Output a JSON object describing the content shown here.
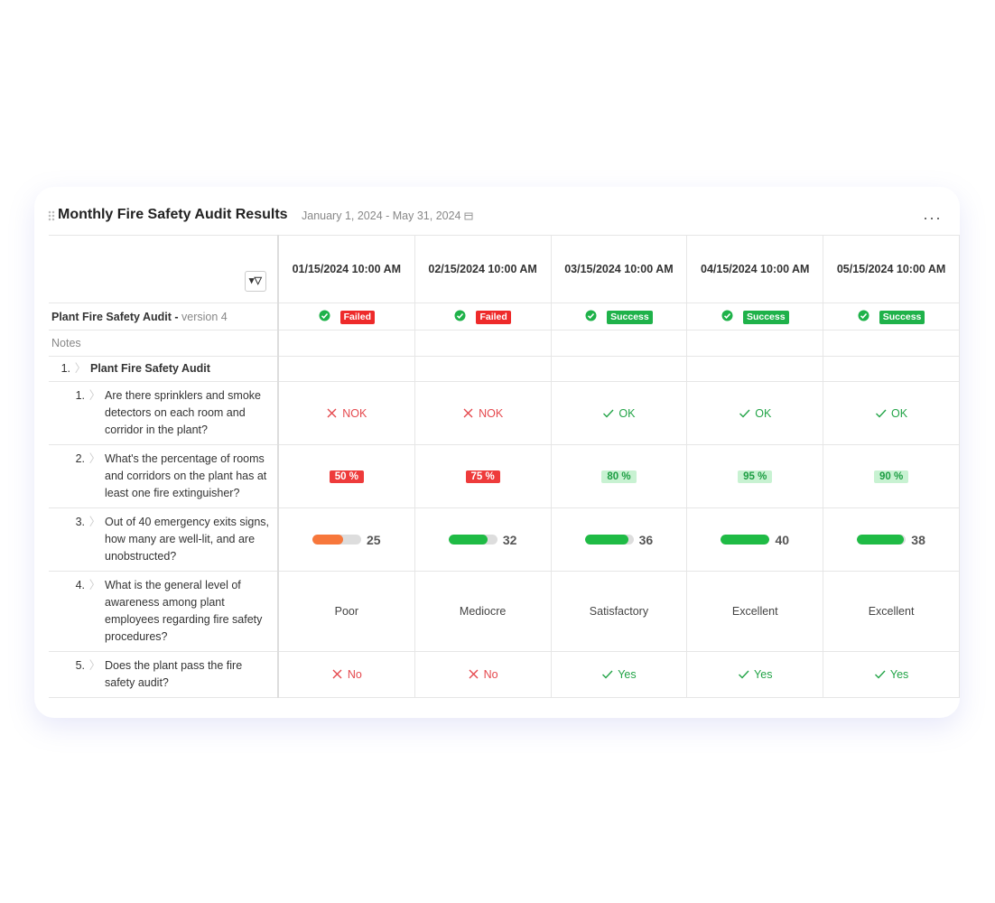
{
  "header": {
    "title": "Monthly Fire Safety Audit Results",
    "date_range": "January 1, 2024 - May 31, 2024"
  },
  "table": {
    "columns": [
      "01/15/2024 10:00 AM",
      "02/15/2024 10:00 AM",
      "03/15/2024 10:00 AM",
      "04/15/2024 10:00 AM",
      "05/15/2024 10:00 AM"
    ],
    "audit": {
      "name": "Plant Fire Safety Audit -",
      "version": "version 4",
      "statuses": [
        {
          "label": "Failed",
          "color": "#ee2a2a"
        },
        {
          "label": "Failed",
          "color": "#ee2a2a"
        },
        {
          "label": "Success",
          "color": "#1fb24a"
        },
        {
          "label": "Success",
          "color": "#1fb24a"
        },
        {
          "label": "Success",
          "color": "#1fb24a"
        }
      ]
    },
    "notes_label": "Notes",
    "section": {
      "number": "1.",
      "title": "Plant Fire Safety Audit"
    },
    "questions": [
      {
        "number": "1.",
        "text": "Are there sprinklers and smoke detectors on each room and corridor in the plant?",
        "answers": [
          {
            "label": "NOK",
            "icon": "cross",
            "color": "#e5484d"
          },
          {
            "label": "NOK",
            "icon": "cross",
            "color": "#e5484d"
          },
          {
            "label": "OK",
            "icon": "check",
            "color": "#22a447"
          },
          {
            "label": "OK",
            "icon": "check",
            "color": "#22a447"
          },
          {
            "label": "OK",
            "icon": "check",
            "color": "#22a447"
          }
        ]
      },
      {
        "number": "2.",
        "text": "What's the percentage of rooms and corridors on the plant has at least one fire extinguisher?",
        "answers": [
          {
            "label": "50 %",
            "bg": "#ee3b3b",
            "color": "#ffffff"
          },
          {
            "label": "75 %",
            "bg": "#ee3b3b",
            "color": "#ffffff"
          },
          {
            "label": "80 %",
            "bg": "#c8f2d2",
            "color": "#1e9e44"
          },
          {
            "label": "95 %",
            "bg": "#c8f2d2",
            "color": "#1e9e44"
          },
          {
            "label": "90 %",
            "bg": "#c8f2d2",
            "color": "#1e9e44"
          }
        ]
      },
      {
        "number": "3.",
        "text": "Out of 40 emergency exits signs, how many are well-lit, and are unobstructed?",
        "max": 40,
        "answers": [
          {
            "value": 25,
            "color": "#f7773b"
          },
          {
            "value": 32,
            "color": "#1fbb45"
          },
          {
            "value": 36,
            "color": "#1fbb45"
          },
          {
            "value": 40,
            "color": "#1fbb45"
          },
          {
            "value": 38,
            "color": "#1fbb45"
          }
        ]
      },
      {
        "number": "4.",
        "text": "What is the general level of awareness among plant employees regarding fire safety procedures?",
        "answers": [
          {
            "label": "Poor"
          },
          {
            "label": "Mediocre"
          },
          {
            "label": "Satisfactory"
          },
          {
            "label": "Excellent"
          },
          {
            "label": "Excellent"
          }
        ]
      },
      {
        "number": "5.",
        "text": "Does the plant pass the fire safety audit?",
        "answers": [
          {
            "label": "No",
            "icon": "cross",
            "color": "#e5484d"
          },
          {
            "label": "No",
            "icon": "cross",
            "color": "#e5484d"
          },
          {
            "label": "Yes",
            "icon": "check",
            "color": "#22a447"
          },
          {
            "label": "Yes",
            "icon": "check",
            "color": "#22a447"
          },
          {
            "label": "Yes",
            "icon": "check",
            "color": "#22a447"
          }
        ]
      }
    ]
  }
}
